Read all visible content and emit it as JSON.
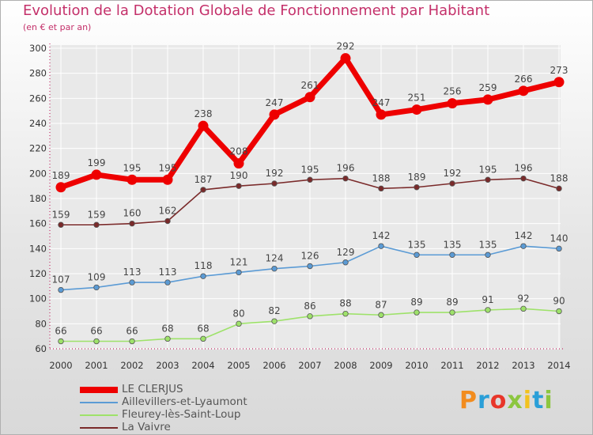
{
  "title": "Evolution de la Dotation Globale de Fonctionnement par Habitant",
  "subtitle": "(en € et par an)",
  "logo": "Proxiti",
  "colors": {
    "title": "#c4306a",
    "axis": "#c4306a",
    "grid": "#ffffff",
    "label": "#444444"
  },
  "chart_data": {
    "type": "line",
    "x": [
      "2000",
      "2001",
      "2002",
      "2003",
      "2004",
      "2005",
      "2006",
      "2007",
      "2008",
      "2009",
      "2010",
      "2011",
      "2012",
      "2013",
      "2014"
    ],
    "ylim": [
      60,
      300
    ],
    "yticks": [
      60,
      80,
      100,
      120,
      140,
      160,
      180,
      200,
      220,
      240,
      260,
      280,
      300
    ],
    "grid": true,
    "legend_position": "bottom-left",
    "series": [
      {
        "name": "LE CLERJUS",
        "color": "#ee0000",
        "values": [
          189,
          199,
          195,
          195,
          238,
          208,
          247,
          261,
          292,
          247,
          251,
          256,
          259,
          266,
          273
        ]
      },
      {
        "name": "Aillevillers-et-Lyaumont",
        "color": "#5b9bd5",
        "values": [
          107,
          109,
          113,
          113,
          118,
          121,
          124,
          126,
          129,
          142,
          135,
          135,
          135,
          142,
          140
        ]
      },
      {
        "name": "Fleurey-lès-Saint-Loup",
        "color": "#9ee26a",
        "values": [
          66,
          66,
          66,
          68,
          68,
          80,
          82,
          86,
          88,
          87,
          89,
          89,
          91,
          92,
          90
        ]
      },
      {
        "name": "La Vaivre",
        "color": "#7a2a2a",
        "values": [
          159,
          159,
          160,
          162,
          187,
          190,
          192,
          195,
          196,
          188,
          189,
          192,
          195,
          196,
          188
        ]
      }
    ]
  }
}
